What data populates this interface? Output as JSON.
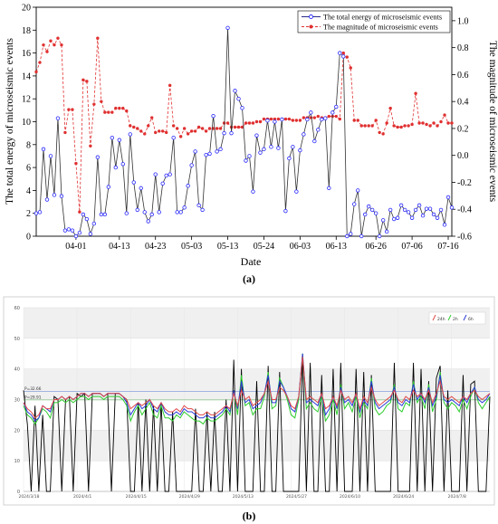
{
  "captions": {
    "a": "(a)",
    "b": "(b)"
  },
  "chart_data": [
    {
      "type": "line",
      "xlabel": "Date",
      "ylabel": "The total energy of microseismic events",
      "ylabel_right": "The magnitude of microseismic events",
      "ylim": [
        0,
        20
      ],
      "ylim_right": [
        -0.6,
        1.1
      ],
      "yticks": [
        0,
        2,
        4,
        6,
        8,
        10,
        12,
        14,
        16,
        18,
        20
      ],
      "yticks_right": [
        -0.6,
        -0.4,
        -0.2,
        0.0,
        0.2,
        0.4,
        0.6,
        0.8,
        1.0
      ],
      "x_tick_labels": [
        "04-01",
        "04-13",
        "04-23",
        "05-03",
        "05-13",
        "05-24",
        "06-03",
        "06-13",
        "06-26",
        "07-06",
        "07-16"
      ],
      "x_tick_positions": [
        11,
        23,
        33,
        43,
        53,
        63,
        73,
        83,
        94,
        104,
        114
      ],
      "x_range": [
        0,
        115
      ],
      "legend_position": "top-right",
      "series": [
        {
          "name": "The total energy of microseismic events",
          "axis": "left",
          "color": "#2a2a8a",
          "marker": "open-circle",
          "values": [
            2.0,
            2.1,
            7.6,
            3.2,
            7.0,
            3.6,
            10.3,
            3.5,
            0.5,
            0.6,
            0.5,
            0.0,
            0.3,
            1.9,
            1.5,
            0.2,
            1.1,
            6.9,
            1.9,
            1.9,
            4.3,
            8.6,
            6.0,
            8.4,
            6.3,
            2.0,
            8.9,
            4.7,
            2.3,
            4.2,
            2.1,
            1.3,
            1.9,
            5.4,
            2.1,
            4.6,
            5.3,
            5.4,
            8.6,
            2.1,
            2.1,
            2.5,
            4.4,
            6.2,
            7.4,
            2.7,
            2.3,
            7.1,
            7.2,
            10.5,
            7.4,
            7.6,
            9.0,
            18.2,
            9.0,
            12.7,
            12.0,
            11.2,
            6.6,
            7.0,
            3.9,
            8.8,
            7.3,
            7.6,
            10.1,
            7.8,
            10.0,
            7.7,
            10.2,
            2.2,
            6.8,
            7.8,
            3.9,
            7.5,
            8.9,
            10.2,
            10.8,
            8.3,
            9.3,
            10.2,
            10.3,
            4.2,
            10.8,
            11.3,
            16.0,
            15.7,
            0.0,
            0.2,
            2.8,
            4.0,
            0.0,
            1.9,
            2.6,
            2.3,
            2.0,
            0.0,
            1.4,
            0.4,
            2.3,
            1.5,
            1.6,
            2.7,
            2.3,
            2.1,
            1.6,
            2.3,
            2.7,
            1.8,
            2.4,
            2.4,
            1.9,
            1.6,
            2.3,
            1.0,
            3.4,
            2.5
          ]
        },
        {
          "name": "The magnitude of microseismic events",
          "axis": "right",
          "color": "#e03030",
          "marker": "filled-circle",
          "values": [
            0.62,
            0.69,
            0.82,
            0.77,
            0.85,
            0.82,
            0.87,
            0.82,
            0.17,
            0.34,
            0.34,
            -0.06,
            -0.42,
            0.56,
            0.55,
            0.07,
            0.38,
            0.87,
            0.4,
            0.32,
            0.32,
            0.32,
            0.35,
            0.35,
            0.35,
            0.33,
            0.22,
            0.21,
            0.2,
            0.18,
            0.16,
            0.22,
            0.28,
            0.17,
            0.18,
            0.18,
            0.17,
            0.52,
            0.22,
            0.2,
            0.14,
            0.2,
            0.16,
            0.18,
            0.18,
            0.21,
            0.2,
            0.18,
            0.2,
            0.2,
            0.2,
            0.2,
            0.24,
            0.24,
            0.21,
            0.21,
            0.21,
            0.21,
            0.24,
            0.24,
            0.24,
            0.25,
            0.25,
            0.27,
            0.27,
            0.27,
            0.27,
            0.27,
            0.27,
            0.27,
            0.27,
            0.26,
            0.26,
            0.26,
            0.28,
            0.28,
            0.28,
            0.28,
            0.29,
            0.28,
            0.28,
            0.29,
            0.29,
            0.29,
            0.27,
            0.76,
            0.73,
            0.65,
            0.26,
            0.26,
            0.22,
            0.22,
            0.22,
            0.22,
            0.26,
            0.17,
            0.16,
            0.24,
            0.35,
            0.22,
            0.21,
            0.21,
            0.22,
            0.22,
            0.23,
            0.46,
            0.24,
            0.24,
            0.23,
            0.22,
            0.24,
            0.22,
            0.25,
            0.3,
            0.24,
            0.24
          ]
        }
      ]
    },
    {
      "type": "line",
      "ylim": [
        0,
        60
      ],
      "yticks": [
        0,
        10,
        20,
        30,
        40,
        50,
        60
      ],
      "x_tick_labels": [
        "2024/3/18",
        "2024/4/1",
        "2024/4/15",
        "2024/4/29",
        "2024/5/13",
        "2024/5/27",
        "2024/6/10",
        "2024/6/24",
        "2024/7/8"
      ],
      "x_tick_positions": [
        0,
        14,
        28,
        42,
        56,
        70,
        84,
        98,
        112
      ],
      "x_range": [
        0,
        122
      ],
      "legend_position": "top-right",
      "reference_lines": [
        {
          "label": "P=32.66",
          "value": 32.66,
          "color": "#8aa0d8"
        },
        {
          "label": "P=29.91",
          "value": 29.9,
          "color": "#8ac88a"
        }
      ],
      "series": [
        {
          "name": "24h",
          "color": "#e04848",
          "values": [
            29,
            27,
            26,
            24,
            25,
            28,
            27,
            27,
            30,
            30,
            31,
            30,
            31,
            30,
            31,
            32,
            32,
            31,
            32,
            32,
            32,
            31,
            32,
            32,
            32,
            32,
            31,
            30,
            27,
            28,
            29,
            28,
            29,
            30,
            28,
            27,
            29,
            27,
            26,
            26,
            27,
            26,
            28,
            27,
            27,
            26,
            25,
            25,
            26,
            25,
            25,
            26,
            27,
            28,
            27,
            32,
            28,
            33,
            30,
            31,
            28,
            29,
            30,
            32,
            36,
            30,
            30,
            34,
            33,
            31,
            28,
            27,
            31,
            44,
            30,
            31,
            30,
            29,
            32,
            27,
            28,
            31,
            28,
            33,
            30,
            31,
            29,
            32,
            27,
            31,
            29,
            34,
            30,
            28,
            29,
            30,
            31,
            33,
            30,
            29,
            31,
            30,
            33,
            31,
            32,
            30,
            33,
            29,
            32,
            36,
            31,
            30,
            31,
            30,
            29,
            31,
            30,
            32,
            33,
            31,
            30,
            31,
            32
          ]
        },
        {
          "name": "2h",
          "color": "#2ecc2e",
          "values": [
            28,
            25,
            24,
            22,
            24,
            27,
            26,
            24,
            29,
            29,
            30,
            29,
            30,
            29,
            30,
            31,
            31,
            30,
            31,
            31,
            31,
            30,
            31,
            31,
            31,
            31,
            30,
            28,
            23,
            26,
            28,
            25,
            27,
            29,
            25,
            24,
            28,
            24,
            24,
            23,
            25,
            24,
            26,
            25,
            24,
            23,
            23,
            22,
            24,
            23,
            23,
            24,
            25,
            27,
            25,
            33,
            25,
            38,
            28,
            29,
            25,
            27,
            27,
            31,
            39,
            27,
            28,
            37,
            34,
            30,
            25,
            24,
            30,
            45,
            27,
            29,
            27,
            26,
            31,
            23,
            25,
            30,
            25,
            35,
            27,
            29,
            26,
            31,
            24,
            29,
            27,
            37,
            27,
            25,
            26,
            28,
            29,
            35,
            27,
            26,
            29,
            28,
            36,
            29,
            31,
            27,
            35,
            26,
            30,
            39,
            29,
            27,
            29,
            28,
            26,
            30,
            27,
            31,
            34,
            29,
            27,
            29,
            31
          ]
        },
        {
          "name": "6h",
          "color": "#2a3ad8",
          "values": [
            29,
            26,
            25,
            23,
            24,
            28,
            27,
            26,
            30,
            30,
            31,
            30,
            31,
            30,
            31,
            32,
            32,
            31,
            32,
            32,
            32,
            31,
            32,
            32,
            32,
            32,
            31,
            29,
            25,
            27,
            29,
            27,
            28,
            30,
            27,
            26,
            29,
            26,
            25,
            25,
            26,
            25,
            27,
            26,
            26,
            25,
            24,
            24,
            25,
            24,
            24,
            25,
            26,
            28,
            26,
            33,
            27,
            36,
            29,
            30,
            27,
            28,
            29,
            32,
            38,
            29,
            29,
            36,
            34,
            31,
            27,
            26,
            31,
            45,
            29,
            30,
            29,
            28,
            32,
            25,
            27,
            31,
            27,
            34,
            29,
            30,
            28,
            32,
            26,
            30,
            28,
            36,
            29,
            27,
            28,
            29,
            30,
            34,
            29,
            28,
            30,
            29,
            35,
            30,
            32,
            29,
            34,
            28,
            31,
            38,
            30,
            29,
            30,
            29,
            28,
            31,
            29,
            32,
            34,
            30,
            29,
            30,
            32
          ]
        },
        {
          "name": "",
          "color": "#000000",
          "style": "spikes",
          "values": [
            33,
            22,
            0,
            28,
            0,
            25,
            0,
            0,
            31,
            30,
            0,
            30,
            31,
            0,
            32,
            31,
            32,
            0,
            32,
            32,
            32,
            31,
            32,
            0,
            32,
            32,
            31,
            30,
            0,
            0,
            29,
            0,
            30,
            0,
            28,
            0,
            29,
            0,
            0,
            26,
            0,
            0,
            0,
            0,
            0,
            27,
            0,
            0,
            26,
            0,
            26,
            0,
            0,
            30,
            0,
            43,
            0,
            40,
            0,
            0,
            0,
            36,
            0,
            0,
            41,
            0,
            0,
            39,
            0,
            0,
            0,
            0,
            0,
            45,
            0,
            42,
            0,
            0,
            38,
            0,
            0,
            40,
            0,
            42,
            0,
            0,
            0,
            40,
            0,
            39,
            0,
            38,
            0,
            0,
            0,
            0,
            0,
            42,
            0,
            0,
            0,
            0,
            42,
            0,
            40,
            0,
            36,
            0,
            37,
            41,
            0,
            33,
            0,
            0,
            0,
            38,
            0,
            35,
            36,
            0,
            0,
            0,
            31
          ]
        }
      ]
    }
  ]
}
